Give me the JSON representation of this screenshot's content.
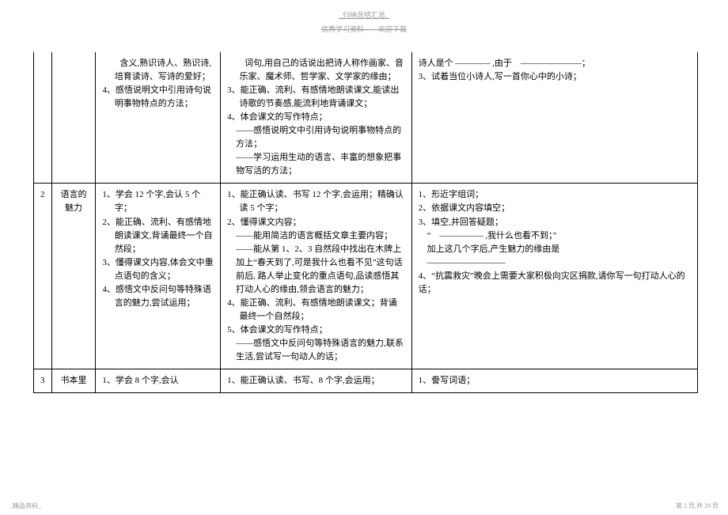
{
  "header": {
    "top": "_归纳总结汇总_",
    "sub": "优秀学习资料 - - - 欢迎下载"
  },
  "rows": [
    {
      "num": "",
      "title": "",
      "colA": [
        "　　含义,熟识诗人、熟识诗,培育读诗、写诗的爱好；",
        "4、感悟说明文中引用诗句说明事物特点的方法；"
      ],
      "colB": [
        "　　词句,用自己的话说出把诗人称作画家、音乐家、魔术师、哲学家、文学家的缘由；",
        "3、能正确、流利、有感情地朗读课文,能读出诗歌的节奏感,能流利地背诵课文；",
        "4、体会课文的写作特点；",
        "——感悟说明文中引用诗句说明事物特点的方法；",
        "——学习运用生动的语言、丰富的想象把事物写活的方法；"
      ],
      "colC": [
        "诗人是个 ———— ,由于　———————；",
        "3、试着当位小诗人,写一首你心中的小诗；"
      ]
    },
    {
      "num": "2",
      "title": "语言的魅力",
      "colA": [
        "1、学会 12 个字,会认 5 个字；",
        "2、能正确、流利、有感情地朗读课文,背诵最终一个自然段；",
        "3、懂得课文内容,体会文中重点语句的含义；",
        "4、感悟文中反问句等特殊语言的魅力,尝试运用；"
      ],
      "colB": [
        "1、能正确认读、书写 12 个字,会运用；精确认读 5 个字；",
        "2、懂得课文内容；",
        "——能用简洁的语言概括文章主要内容；",
        "——能从第 1、2、3 自然段中找出在木牌上加上“春天到了,可是我什么也看不见”这句话前后, 路人举止变化的重点语句,品读感悟其打动人心的缘由,领会语言的魅力；",
        "4、能正确、流利、有感情地朗读课文；背诵最终一个自然段；",
        "5、体会课文的写作特点；",
        "——感悟文中反问句等特殊语言的魅力,联系生活,尝试写一句动人的话；"
      ],
      "colC": [
        "1、形近字组词；",
        "2、依据课文内容填空；",
        "3、填空,并回答疑题；",
        "　“　————— ,我什么也看不到；”",
        "　加上这几个字后,产生魅力的缘由是",
        "　—————————",
        "4、“抗震救灾”晚会上需要大家积极向灾区捐款,请你写一句打动人心的话；"
      ]
    },
    {
      "num": "3",
      "title": "书本里",
      "colA": [
        "1、学会 8 个字,会认"
      ],
      "colB": [
        "1、能正确认读、书写、8 个字,会运用；"
      ],
      "colC": [
        "1、誊写词语；"
      ]
    }
  ],
  "footer": {
    "left": "_精品资料_",
    "right": "第 2 页,共 29 页"
  }
}
